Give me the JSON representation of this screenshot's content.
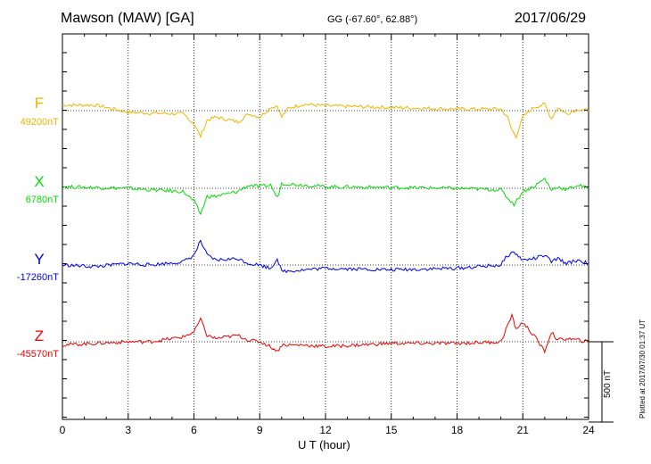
{
  "header": {
    "station": "Mawson (MAW)  [GA]",
    "coords": "GG (-67.60°,  62.88°)",
    "date": "2017/06/29"
  },
  "footer": {
    "plotted": "Plotted at 2017/07/30 01:37 UT"
  },
  "chart_data": {
    "type": "line",
    "xlabel": "U T (hour)",
    "xlim": [
      0,
      24
    ],
    "x_ticks": [
      "0",
      "3",
      "6",
      "9",
      "12",
      "15",
      "18",
      "21",
      "24"
    ],
    "grid": true,
    "scale_bar": {
      "label": "500 nT",
      "value_nT": 500
    },
    "series": [
      {
        "name": "F",
        "baseline_label": "49200nT",
        "baseline_nT": 49200,
        "color": "#f0b400",
        "points": [
          [
            0,
            35
          ],
          [
            1.5,
            35
          ],
          [
            3,
            -10
          ],
          [
            4,
            -15
          ],
          [
            5.5,
            -20
          ],
          [
            6,
            -80
          ],
          [
            6.3,
            -160
          ],
          [
            6.6,
            -60
          ],
          [
            7,
            -40
          ],
          [
            8,
            -70
          ],
          [
            8.5,
            -20
          ],
          [
            9,
            -40
          ],
          [
            9.5,
            20
          ],
          [
            9.8,
            30
          ],
          [
            10,
            -40
          ],
          [
            10.3,
            15
          ],
          [
            11,
            40
          ],
          [
            12,
            30
          ],
          [
            15,
            20
          ],
          [
            18,
            10
          ],
          [
            20,
            10
          ],
          [
            20.3,
            -40
          ],
          [
            20.5,
            -120
          ],
          [
            20.7,
            -160
          ],
          [
            21,
            -40
          ],
          [
            21.5,
            20
          ],
          [
            22,
            40
          ],
          [
            22.3,
            -50
          ],
          [
            22.6,
            20
          ],
          [
            23,
            -20
          ],
          [
            23.5,
            10
          ],
          [
            24,
            0
          ]
        ]
      },
      {
        "name": "X",
        "baseline_label": "6780nT",
        "baseline_nT": 6780,
        "color": "#00dd00",
        "points": [
          [
            0,
            10
          ],
          [
            1.5,
            5
          ],
          [
            3,
            0
          ],
          [
            4,
            -10
          ],
          [
            5.5,
            -20
          ],
          [
            6,
            -80
          ],
          [
            6.3,
            -160
          ],
          [
            6.6,
            -50
          ],
          [
            7,
            -50
          ],
          [
            8,
            -20
          ],
          [
            8.5,
            20
          ],
          [
            9,
            10
          ],
          [
            9.5,
            20
          ],
          [
            9.8,
            -60
          ],
          [
            10,
            30
          ],
          [
            11,
            20
          ],
          [
            12,
            10
          ],
          [
            15,
            5
          ],
          [
            18,
            0
          ],
          [
            20,
            -10
          ],
          [
            20.3,
            -60
          ],
          [
            20.6,
            -100
          ],
          [
            21,
            -20
          ],
          [
            21.5,
            10
          ],
          [
            22,
            60
          ],
          [
            22.3,
            -10
          ],
          [
            22.6,
            10
          ],
          [
            23,
            -10
          ],
          [
            23.5,
            20
          ],
          [
            24,
            0
          ]
        ]
      },
      {
        "name": "Y",
        "baseline_label": "-17260nT",
        "baseline_nT": -17260,
        "color": "#0000ee",
        "points": [
          [
            0,
            0
          ],
          [
            1.5,
            -10
          ],
          [
            3,
            10
          ],
          [
            4,
            0
          ],
          [
            5.5,
            20
          ],
          [
            6,
            60
          ],
          [
            6.3,
            150
          ],
          [
            6.6,
            60
          ],
          [
            7,
            30
          ],
          [
            8,
            40
          ],
          [
            8.5,
            10
          ],
          [
            9,
            0
          ],
          [
            9.5,
            -20
          ],
          [
            9.8,
            40
          ],
          [
            10,
            -40
          ],
          [
            11,
            -30
          ],
          [
            12,
            -20
          ],
          [
            15,
            -30
          ],
          [
            18,
            -20
          ],
          [
            20,
            0
          ],
          [
            20.3,
            60
          ],
          [
            20.6,
            80
          ],
          [
            21,
            30
          ],
          [
            21.5,
            40
          ],
          [
            22,
            60
          ],
          [
            22.3,
            20
          ],
          [
            22.6,
            40
          ],
          [
            23,
            10
          ],
          [
            23.5,
            30
          ],
          [
            24,
            10
          ]
        ]
      },
      {
        "name": "Z",
        "baseline_label": "-45570nT",
        "baseline_nT": -45570,
        "color": "#ee0000",
        "points": [
          [
            0,
            -20
          ],
          [
            1.5,
            -10
          ],
          [
            3,
            0
          ],
          [
            4,
            0
          ],
          [
            5.5,
            30
          ],
          [
            6,
            60
          ],
          [
            6.3,
            140
          ],
          [
            6.6,
            40
          ],
          [
            7,
            20
          ],
          [
            8,
            40
          ],
          [
            8.5,
            10
          ],
          [
            9,
            0
          ],
          [
            9.5,
            -30
          ],
          [
            9.8,
            -60
          ],
          [
            10,
            -20
          ],
          [
            11,
            -20
          ],
          [
            12,
            -30
          ],
          [
            15,
            -10
          ],
          [
            18,
            -10
          ],
          [
            20,
            0
          ],
          [
            20.3,
            100
          ],
          [
            20.5,
            160
          ],
          [
            20.7,
            80
          ],
          [
            21,
            120
          ],
          [
            21.5,
            40
          ],
          [
            22,
            -60
          ],
          [
            22.3,
            60
          ],
          [
            22.6,
            10
          ],
          [
            23,
            20
          ],
          [
            23.5,
            10
          ],
          [
            24,
            0
          ]
        ]
      }
    ]
  }
}
